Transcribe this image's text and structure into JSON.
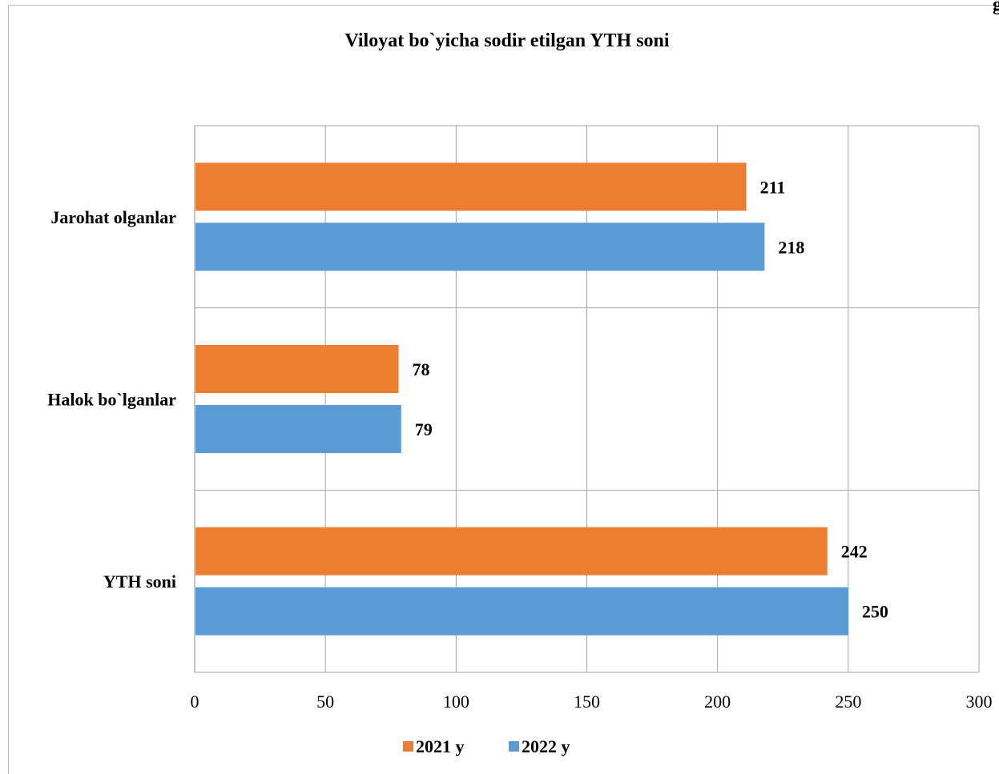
{
  "corner_text": "g",
  "chart_data": {
    "type": "bar",
    "orientation": "horizontal",
    "title": "Viloyat bo`yicha sodir etilgan YTH soni",
    "categories": [
      "Jarohat olganlar",
      "Halok bo`lganlar",
      "YTH soni"
    ],
    "series": [
      {
        "name": "2021 y",
        "color": "#ED7D31",
        "values": [
          211,
          78,
          242
        ]
      },
      {
        "name": "2022 y",
        "color": "#5B9BD5",
        "values": [
          218,
          79,
          250
        ]
      }
    ],
    "xlim": [
      0,
      300
    ],
    "ticks": [
      "0",
      "50",
      "100",
      "150",
      "200",
      "250",
      "300"
    ],
    "grid": true,
    "legend": "bottom"
  }
}
